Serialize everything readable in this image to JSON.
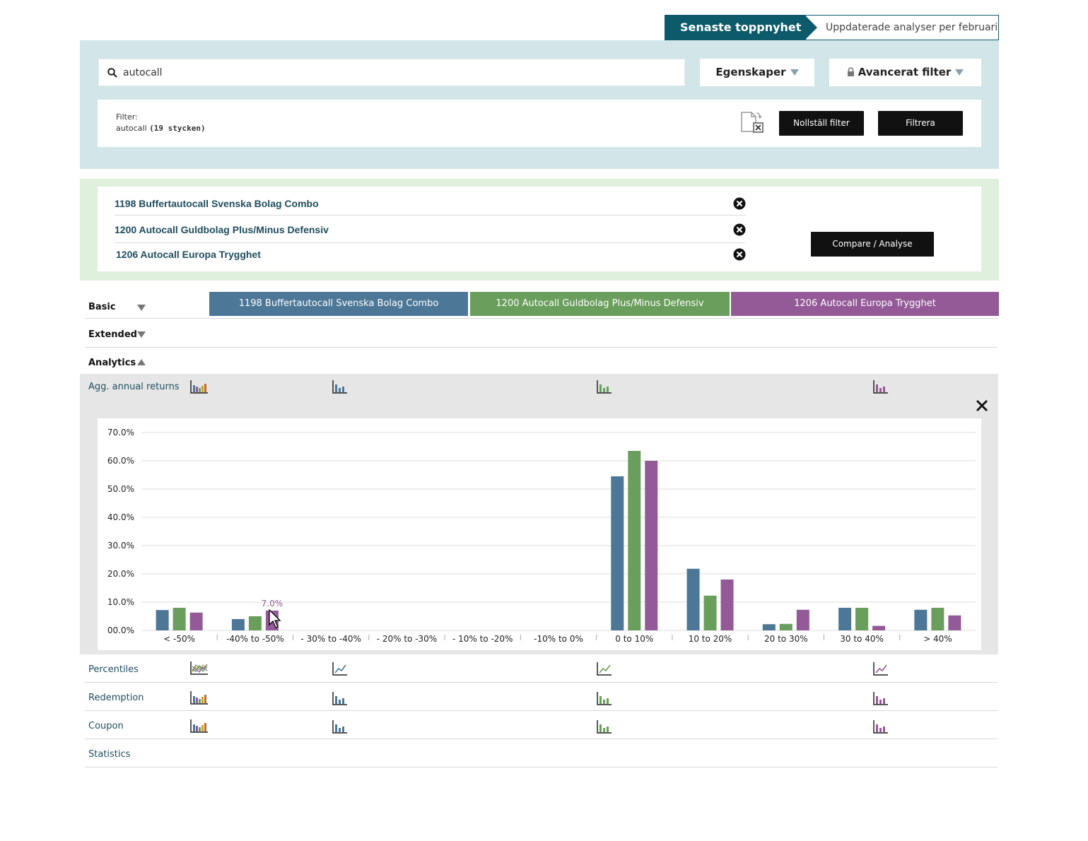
{
  "ticker": {
    "label": "Senaste toppnyhet",
    "news": "Uppdaterade analyser per februari"
  },
  "search": {
    "value": "autocall",
    "properties_label": "Egenskaper",
    "advanced_filter_label": "Avancerat filter"
  },
  "filter": {
    "label": "Filter:",
    "term": "autocall",
    "count": "(19 stycken)",
    "reset_label": "Nollställ filter",
    "apply_label": "Filtrera"
  },
  "selected": {
    "items": [
      {
        "name": "1198 Buffertautocall Svenska Bolag Combo"
      },
      {
        "name": "1200 Autocall Guldbolag Plus/Minus Defensiv"
      },
      {
        "name": "1206 Autocall Europa Trygghet"
      }
    ],
    "compare_label": "Compare / Analyse"
  },
  "sections": {
    "basic": "Basic",
    "extended": "Extended",
    "analytics": "Analytics"
  },
  "columns": [
    {
      "name": "1198 Buffertautocall Svenska Bolag Combo",
      "color": "#4c7797"
    },
    {
      "name": "1200 Autocall Guldbolag Plus/Minus Defensiv",
      "color": "#6a9e5c"
    },
    {
      "name": "1206 Autocall Europa Trygghet",
      "color": "#935a97"
    }
  ],
  "analytics_rows": {
    "agg_returns": "Agg. annual returns",
    "percentiles": "Percentiles",
    "redemption": "Redemption",
    "coupon": "Coupon",
    "statistics": "Statistics"
  },
  "tooltip": {
    "text": "7.0%"
  },
  "chart_data": {
    "type": "bar",
    "categories": [
      "< -50%",
      "-40% to -50%",
      "- 30% to -40%",
      "- 20% to -30%",
      "- 10% to -20%",
      "-10% to 0%",
      "0 to 10%",
      "10 to 20%",
      "20 to 30%",
      "30 to 40%",
      "> 40%"
    ],
    "series": [
      {
        "name": "1198 Buffertautocall Svenska Bolag Combo",
        "color": "#4c7797",
        "values": [
          7.2,
          4.0,
          0,
          0,
          0,
          0,
          54.5,
          21.8,
          2.2,
          8.0,
          7.3
        ]
      },
      {
        "name": "1200 Autocall Guldbolag Plus/Minus Defensiv",
        "color": "#6a9e5c",
        "values": [
          8.0,
          5.0,
          0,
          0,
          0,
          0,
          63.5,
          12.3,
          2.3,
          8.0,
          8.0
        ]
      },
      {
        "name": "1206 Autocall Europa Trygghet",
        "color": "#935a97",
        "values": [
          6.3,
          7.0,
          0,
          0,
          0,
          0,
          60.0,
          18.0,
          7.3,
          1.6,
          5.3
        ]
      }
    ],
    "y_ticks": [
      "00.0%",
      "10.0%",
      "20.0%",
      "30.0%",
      "40.0%",
      "50.0%",
      "60.0%",
      "70.0%"
    ],
    "ylim": [
      0,
      70
    ],
    "grid": true,
    "highlight": {
      "series": 2,
      "category": 1,
      "label": "7.0%"
    }
  }
}
